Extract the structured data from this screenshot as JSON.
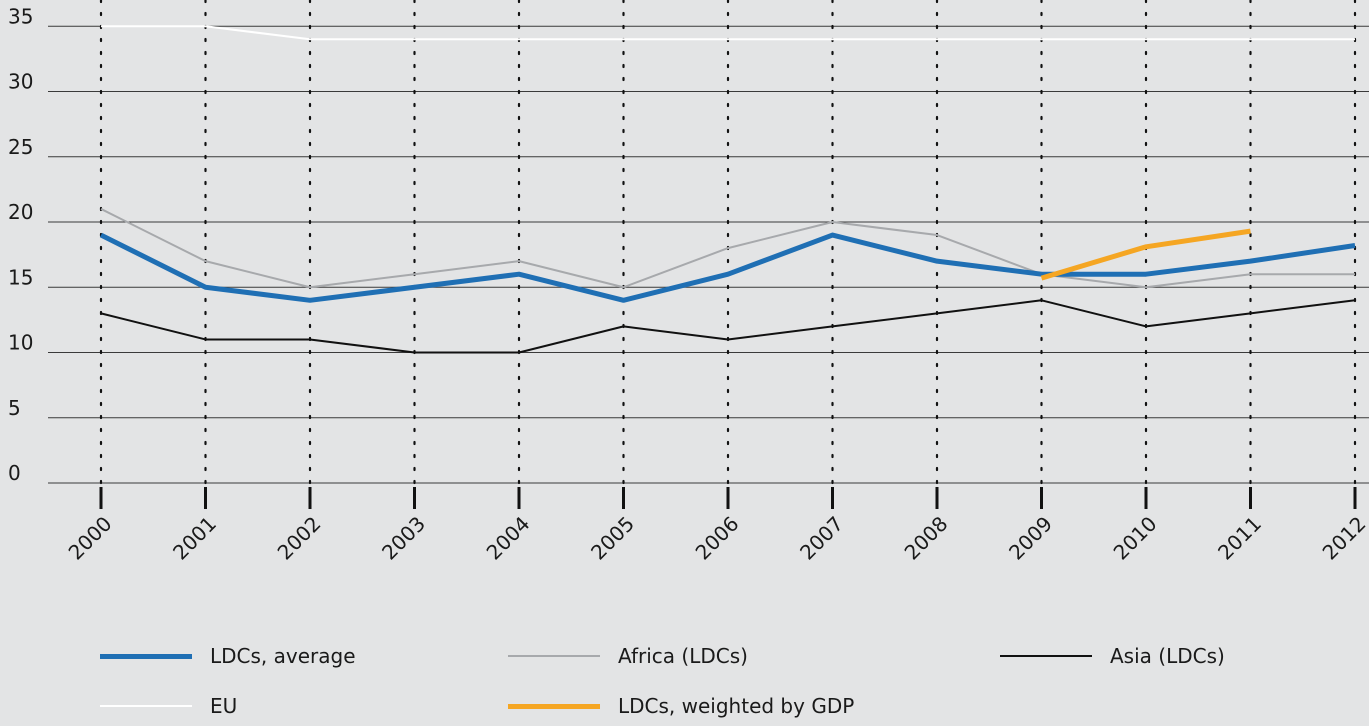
{
  "chart_data": {
    "type": "line",
    "title": "",
    "xlabel": "",
    "ylabel": "",
    "x": [
      "2000",
      "2001",
      "2002",
      "2003",
      "2004",
      "2005",
      "2006",
      "2007",
      "2008",
      "2009",
      "2010",
      "2011",
      "2012"
    ],
    "yticks": [
      0,
      5,
      10,
      15,
      20,
      25,
      30,
      35
    ],
    "ylim": [
      0,
      35
    ],
    "grid": "horizontal solid lines, vertical dotted lines",
    "legend_position": "bottom",
    "series": [
      {
        "name": "EU",
        "color": "#ffffff",
        "values": [
          35,
          35,
          34,
          34,
          34,
          34,
          34,
          34,
          34,
          34,
          34,
          34,
          34
        ]
      },
      {
        "name": "Africa (LDCs)",
        "color": "#a7a9ac",
        "values": [
          21,
          17,
          15,
          16,
          17,
          15,
          18,
          20,
          19,
          16,
          15,
          16,
          16
        ]
      },
      {
        "name": "Asia (LDCs)",
        "color": "#111111",
        "values": [
          13,
          11,
          11,
          10,
          10,
          12,
          11,
          12,
          13,
          14,
          12,
          13,
          14
        ]
      },
      {
        "name": "LDCs, average",
        "color": "#1f6fb4",
        "values": [
          19,
          15,
          14,
          15,
          16,
          14,
          16,
          19,
          17,
          16,
          16,
          17,
          18.2
        ]
      },
      {
        "name": "LDCs, weighted by GDP",
        "color": "#f5a623",
        "values": [
          null,
          null,
          null,
          null,
          null,
          null,
          null,
          null,
          null,
          15.7,
          18.1,
          19.3,
          null
        ]
      }
    ]
  },
  "legend": {
    "items": [
      {
        "label": "LDCs, average",
        "color": "#1f6fb4"
      },
      {
        "label": "Africa (LDCs)",
        "color": "#a7a9ac"
      },
      {
        "label": "Asia (LDCs)",
        "color": "#111111"
      },
      {
        "label": "EU",
        "color": "#ffffff"
      },
      {
        "label": "LDCs, weighted by GDP",
        "color": "#f5a623"
      }
    ]
  }
}
